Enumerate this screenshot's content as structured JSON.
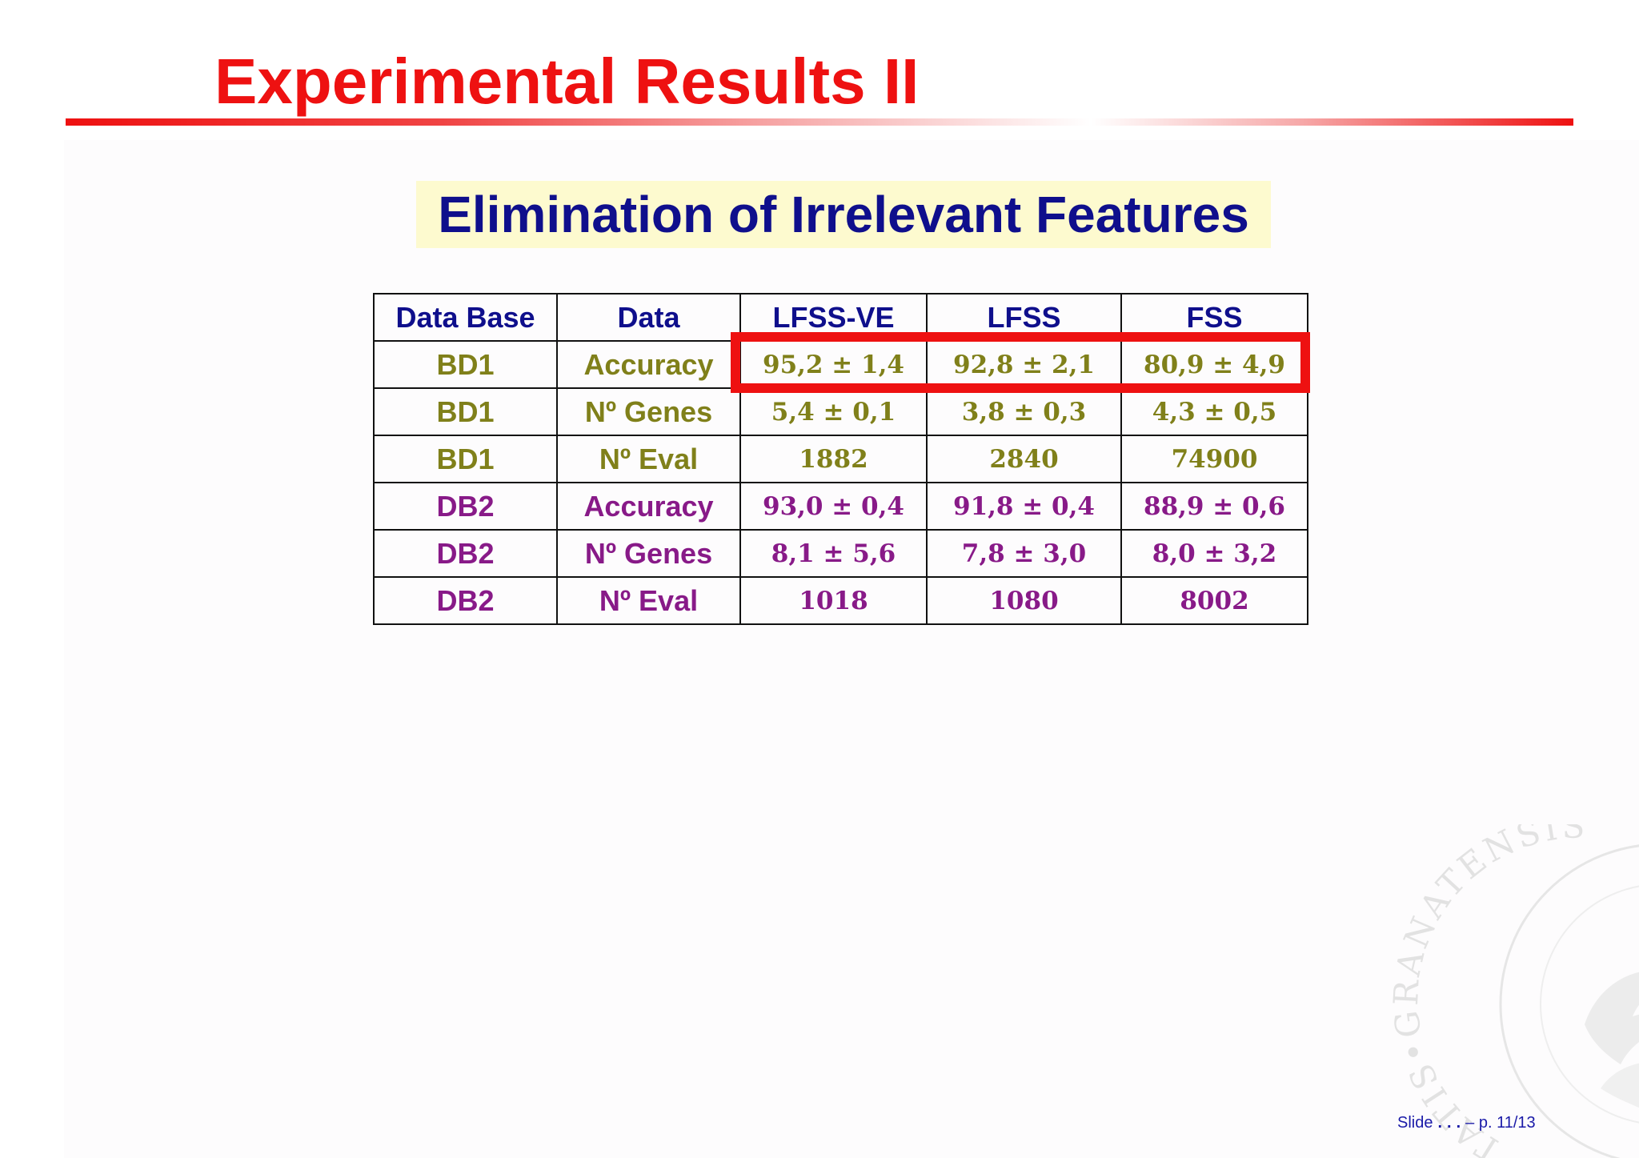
{
  "slide": {
    "title": "Experimental Results II",
    "subtitle": "Elimination of Irrelevant Features"
  },
  "table": {
    "headers": [
      "Data Base",
      "Data",
      "LFSS-VE",
      "LFSS",
      "FSS"
    ],
    "rows": [
      [
        "BD1",
        "Accuracy",
        "95,2 ± 1,4",
        "92,8 ± 2,1",
        "80,9 ± 4,9"
      ],
      [
        "BD1",
        "Nº Genes",
        "5,4 ± 0,1",
        "3,8 ± 0,3",
        "4,3 ± 0,5"
      ],
      [
        "BD1",
        "Nº Eval",
        "1882",
        "2840",
        "74900"
      ],
      [
        "DB2",
        "Accuracy",
        "93,0 ± 0,4",
        "91,8 ± 0,4",
        "88,9 ± 0,6"
      ],
      [
        "DB2",
        "Nº Genes",
        "8,1 ± 5,6",
        "7,8 ± 3,0",
        "8,0 ± 3,2"
      ],
      [
        "DB2",
        "Nº Eval",
        "1018",
        "1080",
        "8002"
      ]
    ]
  },
  "footer": {
    "prefix": "Slide",
    "dots": "...",
    "page": "– p. 11/13"
  },
  "seal": {
    "text": "TATIS•GRANATENSIS"
  },
  "colors": {
    "title": "#ee1111",
    "subtitle": "#0f0f8c",
    "subtitle_bg": "#fdfacf",
    "bd1_rows": "#80801a",
    "db2_rows": "#881a88",
    "highlight_box": "#ee1111"
  }
}
